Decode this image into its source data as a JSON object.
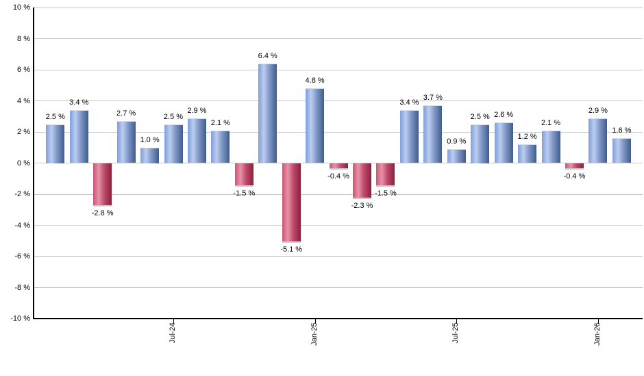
{
  "chart_data": {
    "type": "bar",
    "title": "",
    "xlabel": "",
    "ylabel": "",
    "unit": "%",
    "ylim": [
      -10,
      10
    ],
    "grid": true,
    "legend": false,
    "y_ticks": [
      10,
      8,
      6,
      4,
      2,
      0,
      -2,
      -4,
      -6,
      -8,
      -10
    ],
    "y_tick_labels": [
      "10 %",
      "8 %",
      "6 %",
      "4 %",
      "2 %",
      "0 %",
      "-2 %",
      "-4 %",
      "-6 %",
      "-8 %",
      "-10 %"
    ],
    "x_tick_labels": [
      {
        "label": "Jul-24",
        "bar_index": 5
      },
      {
        "label": "Jan-25",
        "bar_index": 11
      },
      {
        "label": "Jul-25",
        "bar_index": 17
      },
      {
        "label": "Jan-26",
        "bar_index": 23
      }
    ],
    "values": [
      2.5,
      3.4,
      -2.8,
      2.7,
      1.0,
      2.5,
      2.9,
      2.1,
      -1.5,
      6.4,
      -5.1,
      4.8,
      -0.4,
      -2.3,
      -1.5,
      3.4,
      3.7,
      0.9,
      2.5,
      2.6,
      1.2,
      2.1,
      -0.4,
      2.9,
      1.6
    ],
    "bar_labels": [
      "2.5 %",
      "3.4 %",
      "-2.8 %",
      "2.7 %",
      "1.0 %",
      "2.5 %",
      "2.9 %",
      "2.1 %",
      "-1.5 %",
      "6.4 %",
      "-5.1 %",
      "4.8 %",
      "-0.4 %",
      "-2.3 %",
      "-1.5 %",
      "3.4 %",
      "3.7 %",
      "0.9 %",
      "2.5 %",
      "2.6 %",
      "1.2 %",
      "2.1 %",
      "-0.4 %",
      "2.9 %",
      "1.6 %"
    ],
    "colors": {
      "positive_bar_gradient": [
        "#7e9edd",
        "#bccdee",
        "#7f97c6",
        "#3f5c8c"
      ],
      "negative_bar_gradient": [
        "#cf5375",
        "#e793a7",
        "#bf4a6c",
        "#8c1f3e"
      ],
      "gridline": "#c8c8c8",
      "axis": "#000000",
      "label_text": "#000000"
    }
  }
}
